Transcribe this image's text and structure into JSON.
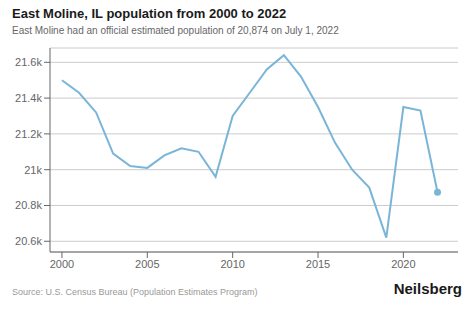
{
  "chart_data": {
    "type": "line",
    "title": "East Moline, IL population from 2000 to 2022",
    "subtitle": "East Moline had an official estimated population of 20,874 on July 1, 2022",
    "annotations": [
      "Source: U.S. Census Bureau (Population Estimates Program)",
      "Neilsberg"
    ],
    "x": [
      2000,
      2001,
      2002,
      2003,
      2004,
      2005,
      2006,
      2007,
      2008,
      2009,
      2010,
      2011,
      2012,
      2013,
      2014,
      2015,
      2016,
      2017,
      2018,
      2019,
      2020,
      2021,
      2022
    ],
    "values": [
      21500,
      21430,
      21320,
      21090,
      21020,
      21010,
      21080,
      21120,
      21100,
      20960,
      21300,
      21430,
      21560,
      21640,
      21520,
      21350,
      21150,
      21000,
      20900,
      20620,
      21350,
      21330,
      20874
    ],
    "color": "#7ab5d8",
    "xlim": [
      1999.3,
      2023.2
    ],
    "ylim": [
      20540,
      21680
    ],
    "xticks": [
      2000,
      2005,
      2010,
      2015,
      2020
    ],
    "yticks": [
      {
        "value": 20600,
        "label": "20.6k"
      },
      {
        "value": 20800,
        "label": "20.8k"
      },
      {
        "value": 21000,
        "label": "21k"
      },
      {
        "value": 21200,
        "label": "21.2k"
      },
      {
        "value": 21400,
        "label": "21.4k"
      },
      {
        "value": 21600,
        "label": "21.6k"
      }
    ],
    "grid": true
  }
}
